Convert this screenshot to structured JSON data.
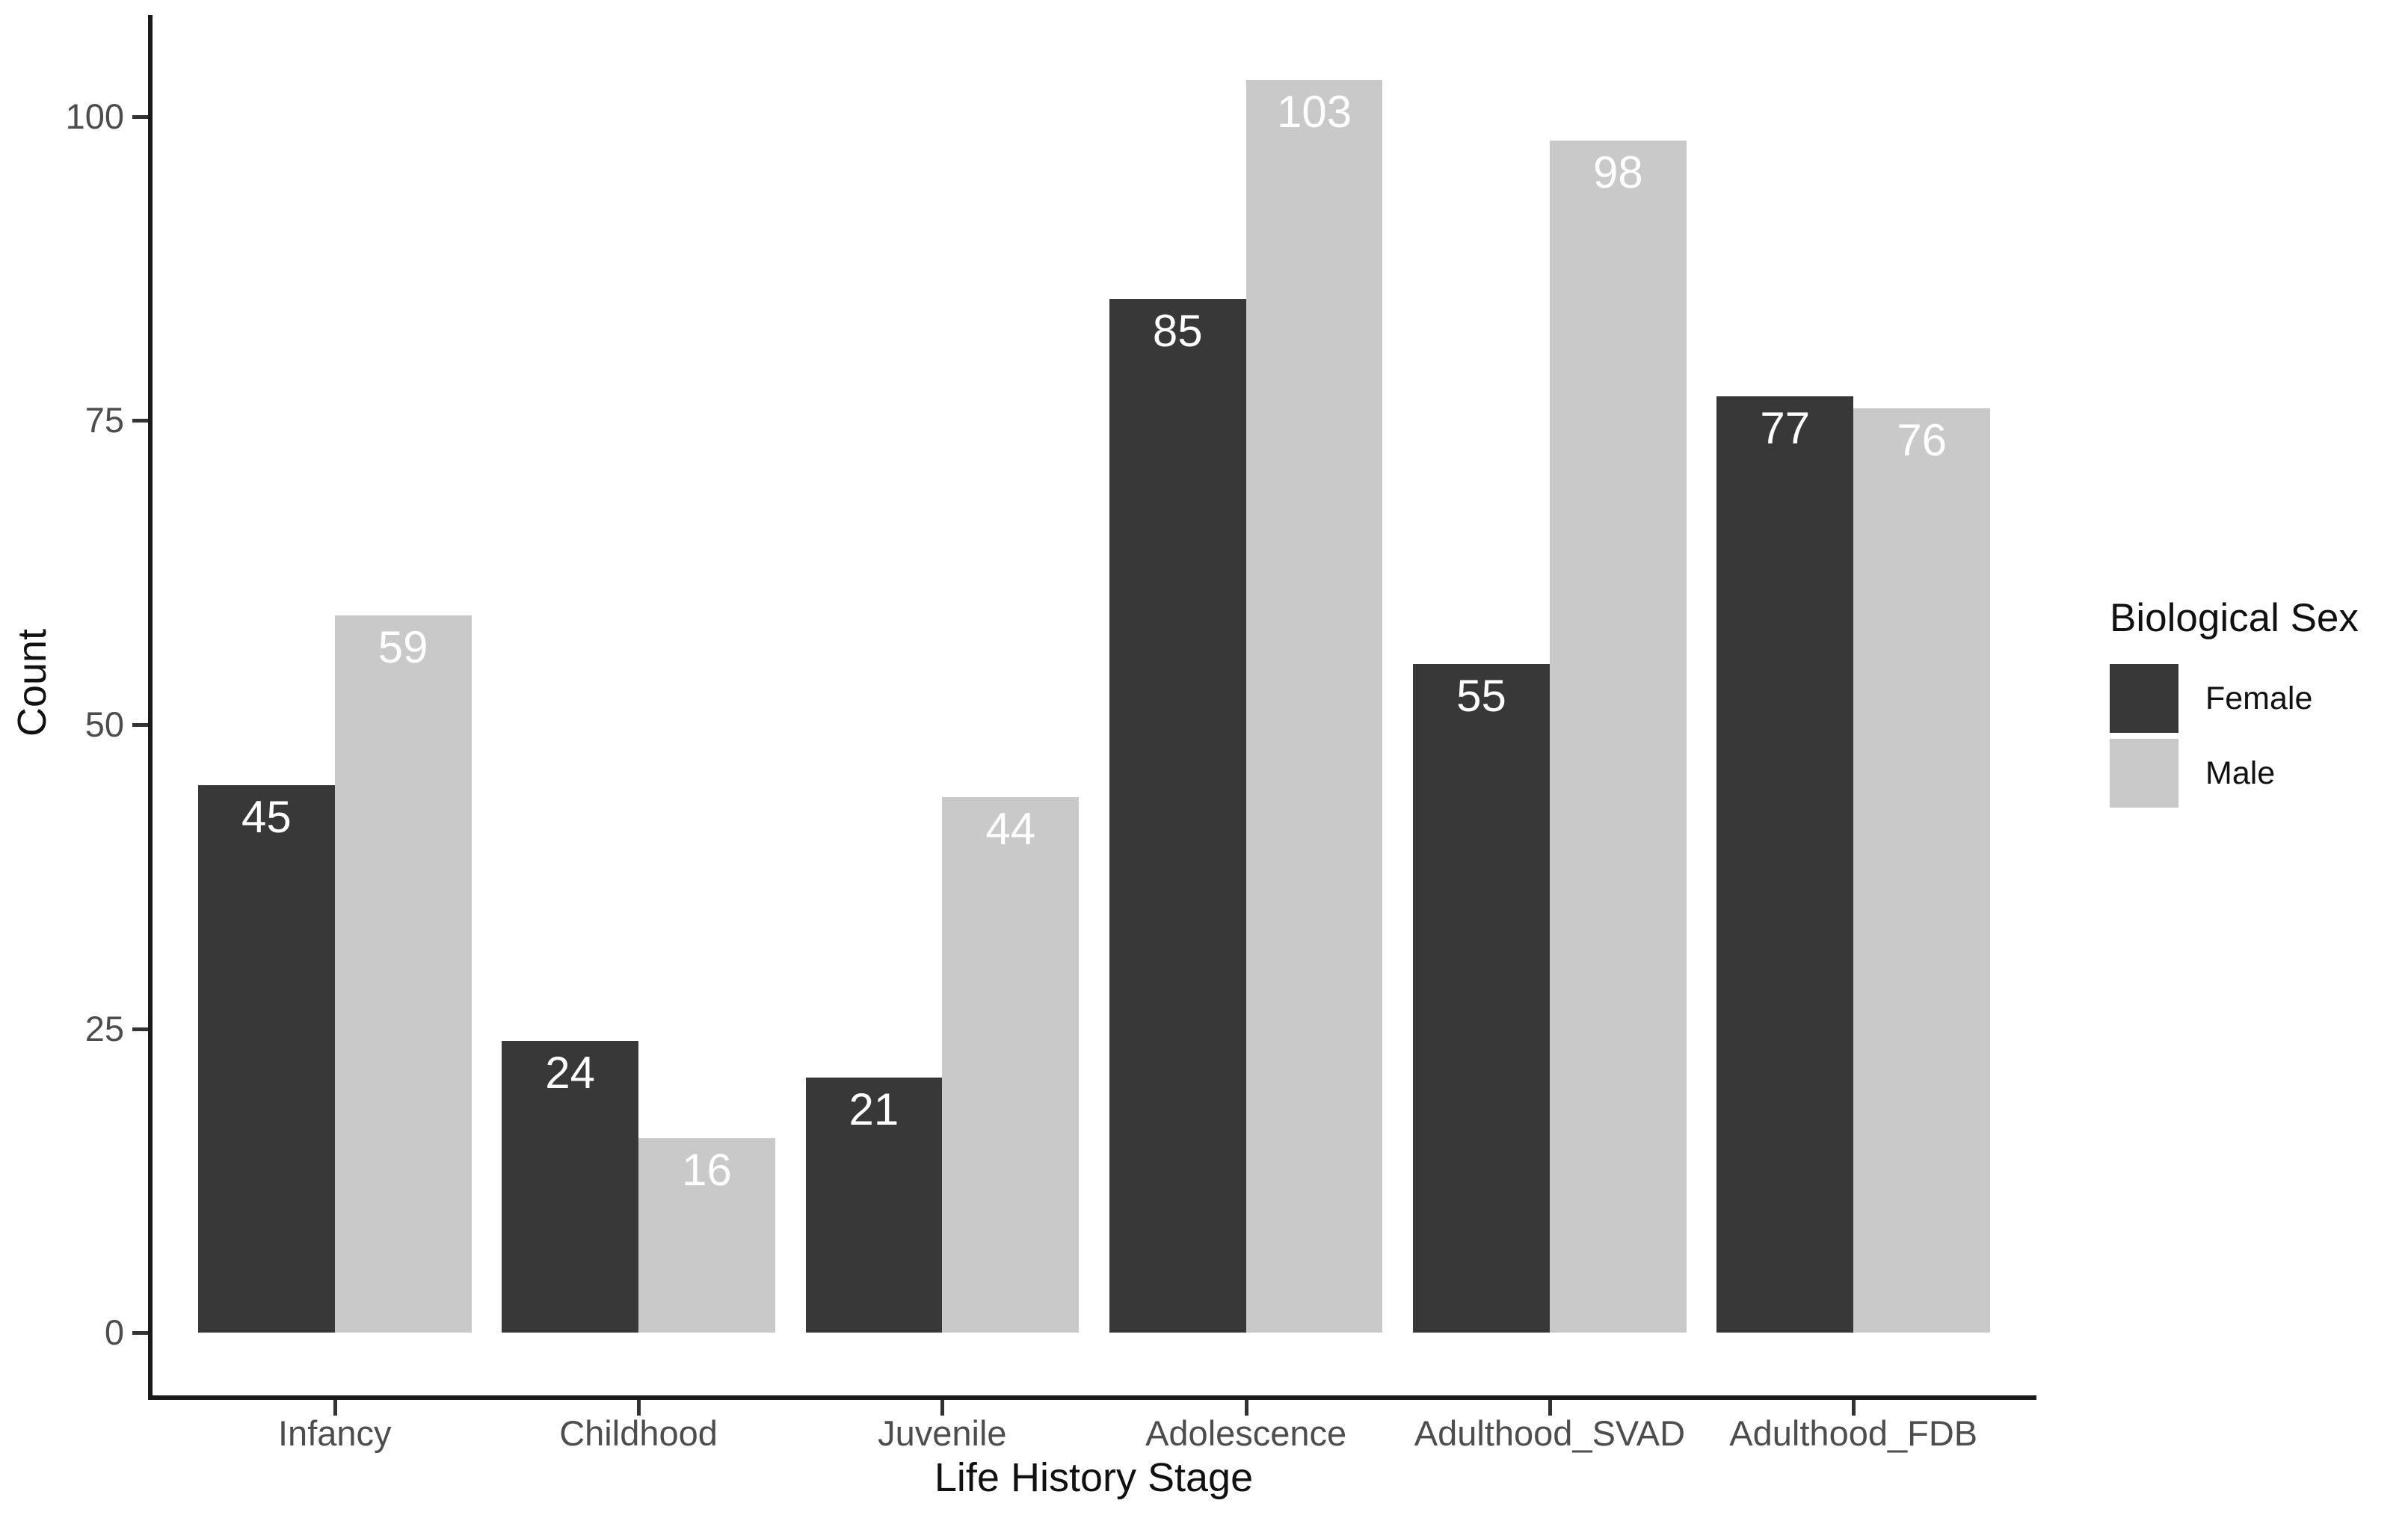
{
  "chart_data": {
    "type": "bar",
    "xlabel": "Life History Stage",
    "ylabel": "Count",
    "categories": [
      "Infancy",
      "Childhood",
      "Juvenile",
      "Adolescence",
      "Adulthood_SVAD",
      "Adulthood_FDB"
    ],
    "series": [
      {
        "name": "Female",
        "color": "#383838",
        "values": [
          45,
          24,
          21,
          85,
          55,
          77
        ]
      },
      {
        "name": "Male",
        "color": "#c9c9c9",
        "values": [
          59,
          16,
          44,
          103,
          98,
          76
        ]
      }
    ],
    "yticks": [
      "0",
      "25",
      "50",
      "75",
      "100"
    ],
    "ylim": [
      -5.15,
      108.15
    ],
    "grid": "off",
    "bar_labels_shown": true,
    "bar_label_color": "#ffffff",
    "axis_text_color": "#4d4d4d",
    "axis_line_color": "#1a1a1a",
    "legend": {
      "title": "Biological Sex",
      "position": "right",
      "entries": [
        "Female",
        "Male"
      ]
    }
  }
}
